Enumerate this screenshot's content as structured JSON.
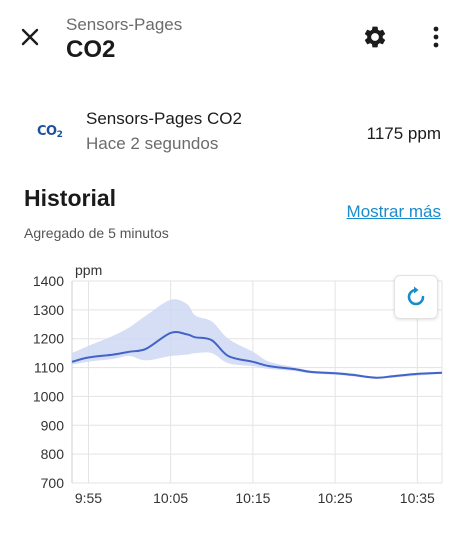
{
  "header": {
    "subtitle": "Sensors-Pages",
    "title": "CO2",
    "close_icon": "close-icon",
    "settings_icon": "gear-icon",
    "more_icon": "more-vertical-icon"
  },
  "entity": {
    "icon": "co2-icon",
    "icon_text": "CO",
    "icon_sub": "2",
    "name": "Sensors-Pages CO2",
    "last_changed": "Hace 2 segundos",
    "state": "1175 ppm"
  },
  "history": {
    "title": "Historial",
    "show_more": "Mostrar más",
    "aggregation_note": "Agregado de 5 minutos",
    "reset_zoom_icon": "refresh-icon"
  },
  "colors": {
    "accent": "#1a8ccc",
    "line": "#4264c8",
    "band": "#cfd8f4",
    "entity_icon": "#1c4fa0"
  },
  "chart_data": {
    "type": "line",
    "ylabel": "ppm",
    "ylim": [
      700,
      1400
    ],
    "yticks": [
      "1400",
      "1300",
      "1200",
      "1100",
      "1000",
      "900",
      "800",
      "700"
    ],
    "xticks": [
      "9:55",
      "10:05",
      "10:15",
      "10:25",
      "10:35"
    ],
    "xlim": [
      "9:53",
      "10:38"
    ],
    "grid": true,
    "series": [
      {
        "x": [
          "9:53",
          "9:55",
          "9:58",
          "10:00",
          "10:02",
          "10:05",
          "10:07",
          "10:08",
          "10:10",
          "10:12",
          "10:15",
          "10:17",
          "10:20",
          "10:22",
          "10:25",
          "10:27",
          "10:30",
          "10:32",
          "10:35",
          "10:38"
        ],
        "values": [
          1120,
          1135,
          1145,
          1155,
          1165,
          1220,
          1215,
          1205,
          1195,
          1140,
          1120,
          1105,
          1095,
          1085,
          1080,
          1075,
          1065,
          1070,
          1078,
          1082
        ],
        "min": [
          1110,
          1120,
          1130,
          1140,
          1125,
          1140,
          1145,
          1150,
          1150,
          1115,
          1105,
          1095,
          1088,
          1080,
          1075,
          1070,
          1062,
          1065,
          1072,
          1078
        ],
        "max": [
          1150,
          1175,
          1210,
          1240,
          1280,
          1335,
          1320,
          1280,
          1260,
          1200,
          1155,
          1120,
          1102,
          1090,
          1085,
          1080,
          1068,
          1074,
          1082,
          1086
        ]
      }
    ]
  }
}
